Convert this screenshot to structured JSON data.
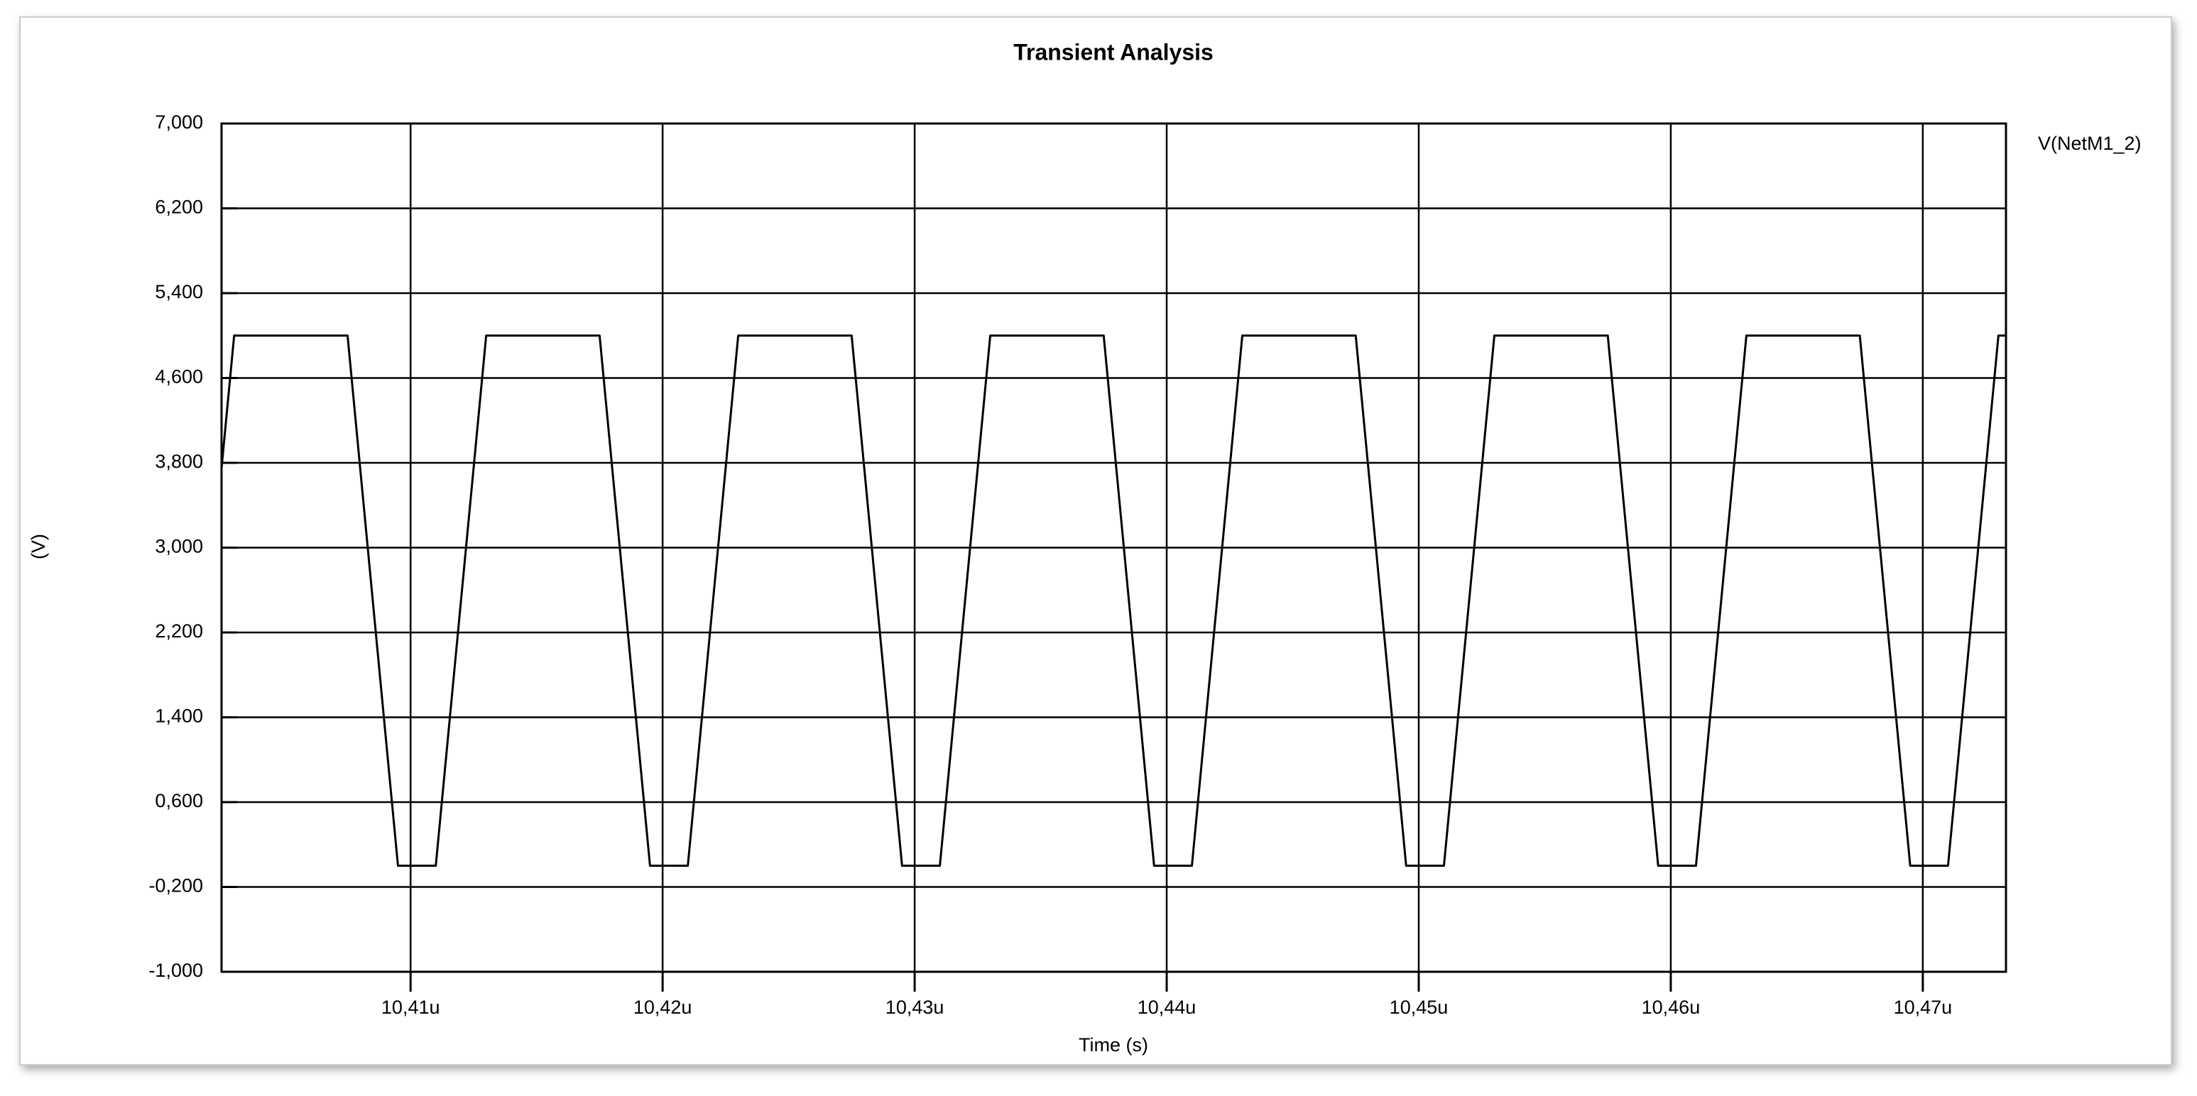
{
  "chart_data": {
    "type": "line",
    "title": "Transient Analysis",
    "x_label": "Time (s)",
    "y_label": "(V)",
    "x": [
      10.4025,
      10.403,
      10.4075,
      10.4095,
      10.411,
      10.413,
      10.4175,
      10.4195,
      10.421,
      10.423,
      10.4275,
      10.4295,
      10.431,
      10.433,
      10.4375,
      10.4395,
      10.441,
      10.443,
      10.4475,
      10.4495,
      10.451,
      10.453,
      10.4575,
      10.4595,
      10.461,
      10.463,
      10.4675,
      10.4695,
      10.471,
      10.473,
      10.4733
    ],
    "series": [
      {
        "name": "V(NetM1_2)",
        "color": "#000000",
        "values": [
          3.75,
          5,
          5,
          0,
          0,
          5,
          5,
          0,
          0,
          5,
          5,
          0,
          0,
          5,
          5,
          0,
          0,
          5,
          5,
          0,
          0,
          5,
          5,
          0,
          0,
          5,
          5,
          0,
          0,
          5,
          5
        ]
      }
    ],
    "xlim": [
      10.4025,
      10.4733
    ],
    "xticks": [
      {
        "value": 10.41,
        "label": "10,41u"
      },
      {
        "value": 10.42,
        "label": "10,42u"
      },
      {
        "value": 10.43,
        "label": "10,43u"
      },
      {
        "value": 10.44,
        "label": "10,44u"
      },
      {
        "value": 10.45,
        "label": "10,45u"
      },
      {
        "value": 10.46,
        "label": "10,46u"
      },
      {
        "value": 10.47,
        "label": "10,47u"
      }
    ],
    "ylim": [
      -1,
      7
    ],
    "yticks": [
      {
        "value": 7,
        "label": "7,000"
      },
      {
        "value": 6.2,
        "label": "6,200"
      },
      {
        "value": 5.4,
        "label": "5,400"
      },
      {
        "value": 4.6,
        "label": "4,600"
      },
      {
        "value": 3.8,
        "label": "3,800"
      },
      {
        "value": 3,
        "label": "3,000"
      },
      {
        "value": 2.2,
        "label": "2,200"
      },
      {
        "value": 1.4,
        "label": "1,400"
      },
      {
        "value": 0.6,
        "label": "0,600"
      },
      {
        "value": -0.2,
        "label": "-0,200"
      },
      {
        "value": -1,
        "label": "-1,000"
      }
    ],
    "grid": true
  }
}
